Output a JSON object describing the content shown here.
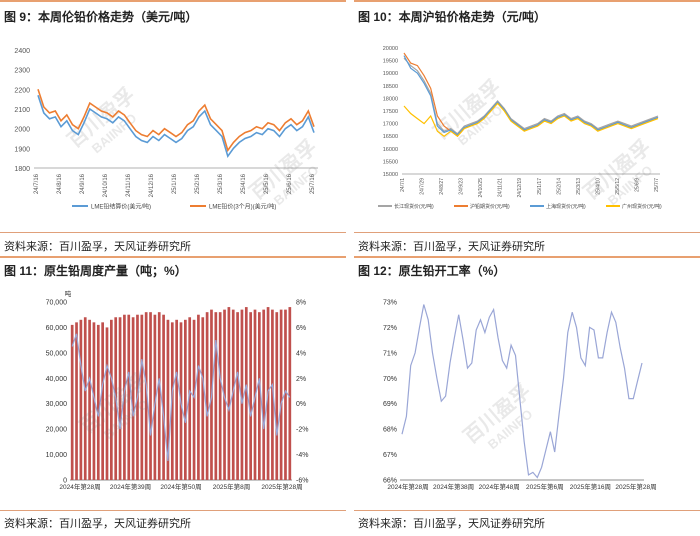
{
  "source_text": "资料来源：百川盈孚，天风证券研究所",
  "watermark": {
    "cn": "百川盈孚",
    "en": "BAIINFO"
  },
  "colors": {
    "accent": "#e8a070",
    "blue": "#5b9bd5",
    "orange": "#ed7d31",
    "gray": "#a5a5a5",
    "yellow": "#ffc000",
    "bar_red": "#c0504d",
    "line_lavender": "#9aa6d6"
  },
  "figures": [
    {
      "title": "图 9：本周伦铅价格走势（美元/吨）"
    },
    {
      "title": "图 10：本周沪铅价格走势（元/吨）"
    },
    {
      "title": "图 11：原生铅周度产量（吨；%）"
    },
    {
      "title": "图 12：原生铅开工率（%）"
    }
  ],
  "chart_data": [
    {
      "type": "line",
      "title": "",
      "ylim": [
        1800,
        2400
      ],
      "yticks": [
        "1800",
        "1900",
        "2000",
        "2100",
        "2200",
        "2300",
        "2400"
      ],
      "xticks": [
        "24/7/16",
        "24/8/16",
        "24/9/16",
        "24/10/16",
        "24/11/16",
        "24/12/16",
        "25/1/16",
        "25/2/16",
        "25/3/16",
        "25/4/16",
        "25/5/16",
        "25/6/16",
        "25/7/16"
      ],
      "legend_position": "bottom",
      "series": [
        {
          "name": "LME铅结算价(美元/吨)",
          "color": "#5b9bd5",
          "values": [
            2170,
            2080,
            2050,
            2060,
            2010,
            2040,
            1990,
            1970,
            2030,
            2100,
            2080,
            2060,
            2050,
            2030,
            2060,
            2040,
            2000,
            1960,
            1940,
            1930,
            1960,
            1940,
            1970,
            1950,
            1930,
            1950,
            1990,
            2010,
            2060,
            2090,
            2020,
            1990,
            1960,
            1860,
            1900,
            1930,
            1950,
            1960,
            1980,
            1970,
            2000,
            1990,
            1960,
            2000,
            2020,
            1990,
            2010,
            2060,
            1980
          ]
        },
        {
          "name": "LME铅价(3个月)(美元/吨)",
          "color": "#ed7d31",
          "values": [
            2200,
            2110,
            2080,
            2090,
            2040,
            2070,
            2020,
            2000,
            2060,
            2130,
            2110,
            2090,
            2080,
            2060,
            2090,
            2070,
            2030,
            1990,
            1970,
            1960,
            1990,
            1970,
            2000,
            1980,
            1960,
            1980,
            2020,
            2040,
            2090,
            2120,
            2050,
            2020,
            1990,
            1890,
            1930,
            1960,
            1980,
            1990,
            2010,
            2000,
            2030,
            2020,
            1990,
            2030,
            2050,
            2020,
            2040,
            2090,
            2010
          ]
        }
      ]
    },
    {
      "type": "line",
      "title": "",
      "ylim": [
        15000,
        20000
      ],
      "yticks": [
        "15000",
        "15500",
        "16000",
        "16500",
        "17000",
        "17500",
        "18000",
        "18500",
        "19000",
        "19500",
        "20000"
      ],
      "xticks": [
        "24/7/1",
        "24/7/29",
        "24/8/27",
        "24/9/23",
        "24/10/25",
        "24/11/21",
        "24/12/19",
        "25/1/17",
        "25/2/14",
        "25/3/13",
        "25/4/10",
        "25/5/12",
        "25/6/9",
        "25/7/7"
      ],
      "legend_position": "bottom",
      "series": [
        {
          "name": "长江现货价(元/吨)",
          "color": "#a5a5a5",
          "values": [
            19600,
            19300,
            19100,
            18700,
            18200,
            17000,
            16700,
            16800,
            16600,
            16900,
            17000,
            17100,
            17300,
            17600,
            17900,
            17600,
            17200,
            17000,
            16800,
            16900,
            17000,
            17200,
            17100,
            17300,
            17400,
            17200,
            17300,
            17100,
            17000,
            16800,
            16900,
            17000,
            17100,
            17000,
            16900,
            17000,
            17100,
            17200,
            17300
          ]
        },
        {
          "name": "沪铅期货价(元/吨)",
          "color": "#ed7d31",
          "values": [
            19800,
            19400,
            19300,
            18900,
            18400,
            17300,
            16900,
            16700,
            16500,
            16800,
            16950,
            17050,
            17250,
            17500,
            17850,
            17550,
            17150,
            16950,
            16750,
            16850,
            16950,
            17150,
            17050,
            17250,
            17350,
            17150,
            17250,
            17050,
            16950,
            16750,
            16850,
            16950,
            17050,
            16950,
            16850,
            16950,
            17050,
            17150,
            17250
          ]
        },
        {
          "name": "上海现货价(元/吨)",
          "color": "#5b9bd5",
          "values": [
            19700,
            19200,
            19000,
            18600,
            18100,
            16900,
            16650,
            16750,
            16550,
            16850,
            16950,
            17050,
            17250,
            17550,
            17850,
            17550,
            17150,
            16950,
            16750,
            16850,
            16950,
            17150,
            17050,
            17250,
            17350,
            17150,
            17250,
            17050,
            16950,
            16750,
            16850,
            16950,
            17050,
            16950,
            16850,
            16950,
            17050,
            17150,
            17250
          ]
        },
        {
          "name": "广州现货价(元/吨)",
          "color": "#ffc000",
          "values": [
            17700,
            17400,
            17200,
            17000,
            17300,
            16700,
            16500,
            16700,
            16500,
            16800,
            16900,
            17000,
            17200,
            17500,
            17800,
            17500,
            17100,
            16900,
            16700,
            16800,
            16900,
            17100,
            17000,
            17200,
            17300,
            17100,
            17200,
            17000,
            16900,
            16700,
            16800,
            16900,
            17000,
            16900,
            16800,
            16900,
            17000,
            17100,
            17200
          ]
        }
      ]
    },
    {
      "type": "bar",
      "title": "",
      "y_unit": "吨",
      "ylim": [
        0,
        70000
      ],
      "yticks": [
        "0",
        "10,000",
        "20,000",
        "30,000",
        "40,000",
        "50,000",
        "60,000",
        "70,000"
      ],
      "y2lim": [
        -6,
        8
      ],
      "y2ticks": [
        "-6%",
        "-4%",
        "-2%",
        "0%",
        "2%",
        "4%",
        "6%",
        "8%"
      ],
      "xticks": [
        "2024年第28周",
        "2024年第39周",
        "2024年第50周",
        "2025年第8周",
        "2025年第28周"
      ],
      "bar_color": "#c0504d",
      "line_color": "#9aa6d6",
      "bar_values": [
        61000,
        62000,
        63000,
        64000,
        63000,
        62000,
        61000,
        62000,
        60000,
        63000,
        64000,
        64000,
        65000,
        65000,
        64000,
        65000,
        65000,
        66000,
        66000,
        65000,
        66000,
        65000,
        63000,
        62000,
        63000,
        62000,
        63000,
        64000,
        63000,
        65000,
        64000,
        66000,
        67000,
        66000,
        66000,
        67000,
        68000,
        67000,
        66000,
        67000,
        68000,
        66000,
        67000,
        66000,
        67000,
        68000,
        67000,
        66000,
        67000,
        67000,
        68000
      ],
      "line_values": [
        4.5,
        5.5,
        3.0,
        1.0,
        2.0,
        0.5,
        -1.0,
        1.5,
        3.0,
        2.0,
        0.5,
        -2.0,
        1.0,
        2.5,
        -1.0,
        0.5,
        3.5,
        1.5,
        -2.5,
        0.0,
        2.0,
        -1.0,
        -4.5,
        1.0,
        2.5,
        0.0,
        -1.5,
        1.0,
        0.5,
        3.0,
        2.0,
        -1.0,
        0.5,
        5.0,
        2.0,
        0.5,
        -0.5,
        1.0,
        2.5,
        0.0,
        1.5,
        -1.0,
        0.5,
        2.0,
        -2.0,
        1.0,
        1.5,
        -2.5,
        0.0,
        1.0,
        0.5
      ]
    },
    {
      "type": "line",
      "title": "",
      "ylim": [
        66,
        73
      ],
      "yticks": [
        "66%",
        "67%",
        "68%",
        "69%",
        "70%",
        "71%",
        "72%",
        "73%"
      ],
      "xticks": [
        "2024年第28周",
        "2024年第38周",
        "2024年第48周",
        "2025年第6周",
        "2025年第16周",
        "2025年第28周"
      ],
      "line_color": "#9aa6d6",
      "values": [
        67.8,
        68.5,
        70.5,
        71.0,
        72.0,
        72.9,
        72.3,
        71.0,
        70.0,
        69.1,
        69.3,
        70.6,
        71.6,
        72.5,
        71.5,
        70.4,
        70.6,
        71.9,
        72.3,
        71.8,
        72.4,
        72.7,
        71.6,
        70.7,
        70.4,
        71.3,
        70.9,
        69.2,
        67.5,
        66.2,
        66.3,
        66.1,
        66.5,
        67.2,
        67.9,
        67.1,
        68.6,
        70.0,
        71.8,
        72.6,
        72.0,
        70.8,
        70.5,
        72.0,
        71.9,
        70.8,
        70.8,
        71.8,
        72.6,
        72.2,
        71.2,
        70.4,
        69.2,
        69.2,
        69.9,
        70.6
      ]
    }
  ]
}
